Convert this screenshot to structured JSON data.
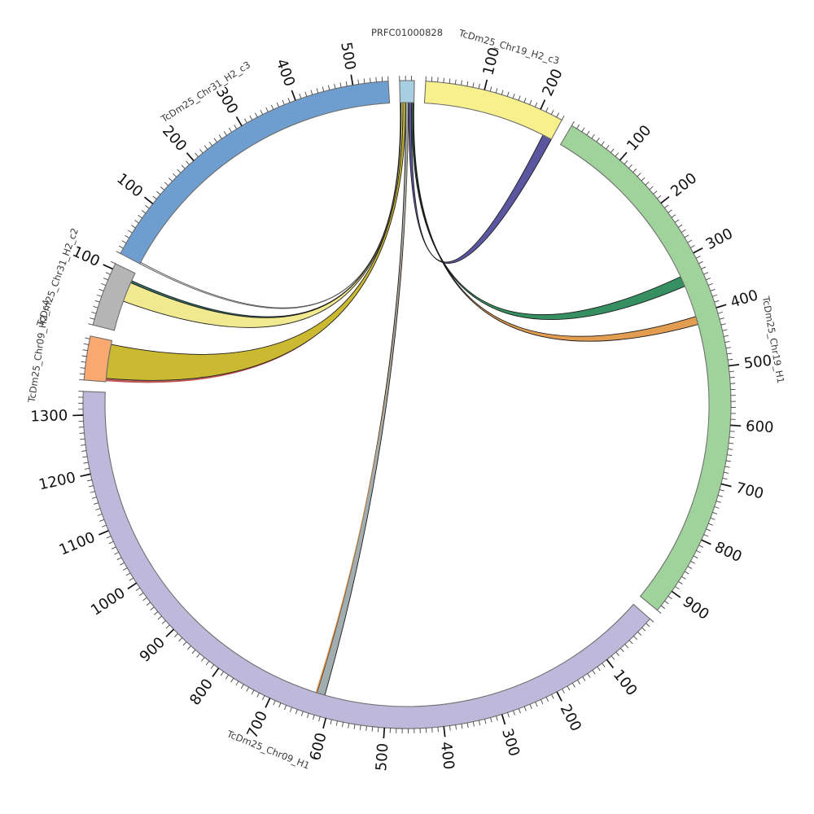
{
  "chart_data": {
    "type": "circos-chord",
    "title": "",
    "center": [
      500,
      497
    ],
    "outer_radius": 398,
    "inner_radius": 371,
    "label_radius": 457,
    "gap_degrees": 2,
    "tick_minor_interval": 10,
    "tick_major_interval": 100,
    "segments": [
      {
        "id": "PRFC01000828",
        "label": "PRFC01000828",
        "size": 25,
        "color": "#A8CEE2",
        "major_tick_labels": []
      },
      {
        "id": "TcDm25_Chr19_H2_c3",
        "label": "TcDm25_Chr19_H2_c3",
        "size": 240,
        "color": "#F8F08C",
        "major_tick_labels": [
          100,
          200
        ]
      },
      {
        "id": "TcDm25_Chr19_H1",
        "label": "TcDm25_Chr19_H1",
        "size": 940,
        "color": "#9FD39B",
        "major_tick_labels": [
          100,
          200,
          300,
          400,
          500,
          600,
          700,
          800,
          900
        ]
      },
      {
        "id": "TcDm25_Chr09_H1",
        "label": "TcDm25_Chr09_H1",
        "size": 1340,
        "color": "#BEB9DB",
        "major_tick_labels": [
          100,
          200,
          300,
          400,
          500,
          600,
          700,
          800,
          900,
          1000,
          1100,
          1200,
          1300
        ]
      },
      {
        "id": "TcDm25_Chr09_H2_c4",
        "label": "TcDm25_Chr09_H2_c4",
        "size": 75,
        "color": "#F9A870",
        "major_tick_labels": []
      },
      {
        "id": "TcDm25_Chr31_H2_c2",
        "label": "TcDm25_Chr31_H2_c2",
        "size": 110,
        "color": "#B5B5B5",
        "major_tick_labels": [
          100
        ]
      },
      {
        "id": "TcDm25_Chr31_H2_c3",
        "label": "TcDm25_Chr31_H2_c3",
        "size": 560,
        "color": "#6D9ECF",
        "major_tick_labels": [
          100,
          200,
          300,
          400,
          500
        ]
      }
    ],
    "links": [
      {
        "name": "contig-to-chr31c3-thin",
        "source": "PRFC01000828",
        "s": [
          0,
          1
        ],
        "target": "TcDm25_Chr31_H2_c3",
        "t": [
          0,
          3
        ],
        "color": "#DCDCDC",
        "stroke": "#555555"
      },
      {
        "name": "contig-to-chr31c2-teal",
        "source": "PRFC01000828",
        "s": [
          1,
          1.7
        ],
        "target": "TcDm25_Chr31_H2_c2",
        "t": [
          91,
          95
        ],
        "color": "#2F6F69",
        "stroke": "#1c1c1c"
      },
      {
        "name": "contig-to-chr31c2-yellow",
        "source": "PRFC01000828",
        "s": [
          1.7,
          5
        ],
        "target": "TcDm25_Chr31_H2_c2",
        "t": [
          55,
          91
        ],
        "color": "#EFE88C",
        "stroke": "#1c1c1c"
      },
      {
        "name": "contig-to-chr09c4-red",
        "source": "PRFC01000828",
        "s": [
          4.7,
          5.2
        ],
        "target": "TcDm25_Chr09_H2_c4",
        "t": [
          1,
          5
        ],
        "color": "#C0504D",
        "stroke": "none"
      },
      {
        "name": "contig-to-chr09c4-olive",
        "source": "PRFC01000828",
        "s": [
          5,
          10
        ],
        "target": "TcDm25_Chr09_H2_c4",
        "t": [
          6,
          68
        ],
        "color": "#C9B72B",
        "stroke": "#1c1c1c"
      },
      {
        "name": "contig-to-chr09h1-gray",
        "source": "PRFC01000828",
        "s": [
          10,
          15
        ],
        "target": "TcDm25_Chr09_H1",
        "t": [
          612,
          627
        ],
        "color": "#9FAAAD",
        "stroke": "#1c1c1c"
      },
      {
        "name": "contig-to-chr09h1-edge",
        "source": "PRFC01000828",
        "s": [
          15,
          15.6
        ],
        "target": "TcDm25_Chr09_H1",
        "t": [
          627,
          629.5
        ],
        "color": "#D98C3F",
        "stroke": "none"
      },
      {
        "name": "contig-to-chr19c3-indigo",
        "source": "PRFC01000828",
        "s": [
          15.6,
          21
        ],
        "target": "TcDm25_Chr19_H2_c3",
        "t": [
          223,
          240
        ],
        "color": "#56519D",
        "stroke": "#1c1c1c"
      },
      {
        "name": "contig-to-chr19h1-green",
        "source": "PRFC01000828",
        "s": [
          21,
          23.5
        ],
        "target": "TcDm25_Chr19_H1",
        "t": [
          327,
          346
        ],
        "color": "#2E8B5B",
        "stroke": "#1c1c1c"
      },
      {
        "name": "contig-to-chr19h1-orange",
        "source": "PRFC01000828",
        "s": [
          23.5,
          25
        ],
        "target": "TcDm25_Chr19_H1",
        "t": [
          404,
          419
        ],
        "color": "#E29A4B",
        "stroke": "#1c1c1c"
      }
    ]
  }
}
